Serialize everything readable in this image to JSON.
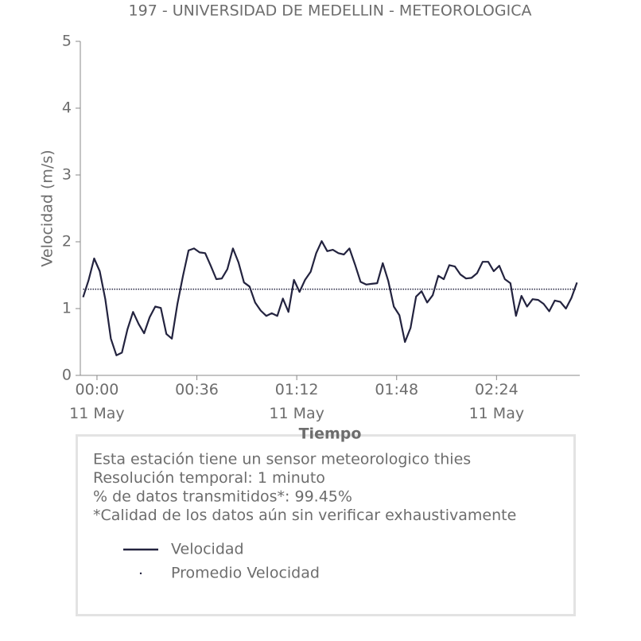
{
  "chart_data": {
    "type": "line",
    "title": "197 - UNIVERSIDAD DE MEDELLIN - METEOROLOGICA",
    "xlabel": "Tiempo",
    "ylabel": "Velocidad (m/s)",
    "x": [
      "23:55",
      "23:57",
      "23:59",
      "00:01",
      "00:03",
      "00:05",
      "00:07",
      "00:09",
      "00:11",
      "00:13",
      "00:15",
      "00:17",
      "00:19",
      "00:21",
      "00:23",
      "00:25",
      "00:27",
      "00:29",
      "00:31",
      "00:33",
      "00:35",
      "00:37",
      "00:39",
      "00:41",
      "00:43",
      "00:45",
      "00:47",
      "00:49",
      "00:51",
      "00:53",
      "00:55",
      "00:57",
      "00:59",
      "01:01",
      "01:03",
      "01:05",
      "01:07",
      "01:09",
      "01:11",
      "01:13",
      "01:15",
      "01:17",
      "01:19",
      "01:21",
      "01:23",
      "01:25",
      "01:27",
      "01:29",
      "01:31",
      "01:33",
      "01:35",
      "01:37",
      "01:39",
      "01:41",
      "01:43",
      "01:45",
      "01:47",
      "01:49",
      "01:51",
      "01:53",
      "01:55",
      "01:57",
      "01:59",
      "02:01",
      "02:03",
      "02:05",
      "02:07",
      "02:09",
      "02:11",
      "02:13",
      "02:15",
      "02:17",
      "02:19",
      "02:21",
      "02:23",
      "02:25",
      "02:27",
      "02:29",
      "02:31",
      "02:33",
      "02:35",
      "02:37",
      "02:39",
      "02:41",
      "02:43",
      "02:45",
      "02:47",
      "02:49",
      "02:51",
      "02:53"
    ],
    "series": [
      {
        "name": "Velocidad",
        "color": "#23233f",
        "style": "solid",
        "values": [
          1.17,
          1.43,
          1.75,
          1.56,
          1.14,
          0.55,
          0.3,
          0.34,
          0.69,
          0.95,
          0.77,
          0.63,
          0.87,
          1.03,
          1.01,
          0.62,
          0.55,
          1.07,
          1.49,
          1.87,
          1.9,
          1.84,
          1.83,
          1.64,
          1.44,
          1.45,
          1.59,
          1.9,
          1.69,
          1.39,
          1.33,
          1.09,
          0.97,
          0.89,
          0.93,
          0.89,
          1.15,
          0.95,
          1.43,
          1.25,
          1.43,
          1.55,
          1.83,
          2.01,
          1.86,
          1.88,
          1.83,
          1.81,
          1.9,
          1.66,
          1.4,
          1.36,
          1.37,
          1.38,
          1.68,
          1.41,
          1.03,
          0.9,
          0.5,
          0.71,
          1.18,
          1.26,
          1.09,
          1.2,
          1.49,
          1.44,
          1.65,
          1.63,
          1.51,
          1.45,
          1.46,
          1.53,
          1.7,
          1.7,
          1.56,
          1.64,
          1.44,
          1.38,
          0.89,
          1.19,
          1.03,
          1.14,
          1.13,
          1.07,
          0.96,
          1.12,
          1.1,
          1.0,
          1.16,
          1.39
        ]
      },
      {
        "name": "Promedio Velocidad",
        "color": "#23233f",
        "style": "dotted",
        "values": [
          1.29,
          1.29,
          1.29,
          1.29,
          1.29,
          1.29,
          1.29,
          1.29,
          1.29,
          1.29,
          1.29,
          1.29,
          1.29,
          1.29,
          1.29,
          1.29,
          1.29,
          1.29,
          1.29,
          1.29,
          1.29,
          1.29,
          1.29,
          1.29,
          1.29,
          1.29,
          1.29,
          1.29,
          1.29,
          1.29,
          1.29,
          1.29,
          1.29,
          1.29,
          1.29,
          1.29,
          1.29,
          1.29,
          1.29,
          1.29,
          1.29,
          1.29,
          1.29,
          1.29,
          1.29,
          1.29,
          1.29,
          1.29,
          1.29,
          1.29,
          1.29,
          1.29,
          1.29,
          1.29,
          1.29,
          1.29,
          1.29,
          1.29,
          1.29,
          1.29,
          1.29,
          1.29,
          1.29,
          1.29,
          1.29,
          1.29,
          1.29,
          1.29,
          1.29,
          1.29,
          1.29,
          1.29,
          1.29,
          1.29,
          1.29,
          1.29,
          1.29,
          1.29,
          1.29,
          1.29,
          1.29,
          1.29,
          1.29,
          1.29,
          1.29,
          1.29,
          1.29,
          1.29,
          1.29,
          1.29
        ]
      }
    ],
    "xlim": [
      "23:54",
      "02:54"
    ],
    "xticks": [
      {
        "value": "00:00",
        "label": "00:00\n11 May"
      },
      {
        "value": "00:36",
        "label": "00:36"
      },
      {
        "value": "01:12",
        "label": "01:12\n11 May"
      },
      {
        "value": "01:48",
        "label": "01:48"
      },
      {
        "value": "02:24",
        "label": "02:24\n11 May"
      }
    ],
    "ylim": [
      0,
      5
    ],
    "yticks": [
      0,
      1,
      2,
      3,
      4,
      5
    ],
    "grid": false,
    "annotations": [
      "Esta estación tiene un sensor meteorologico thies",
      "Resolución temporal: 1 minuto",
      "% de datos transmitidos*: 99.45%",
      "*Calidad de los datos aún sin verificar exhaustivamente"
    ]
  }
}
